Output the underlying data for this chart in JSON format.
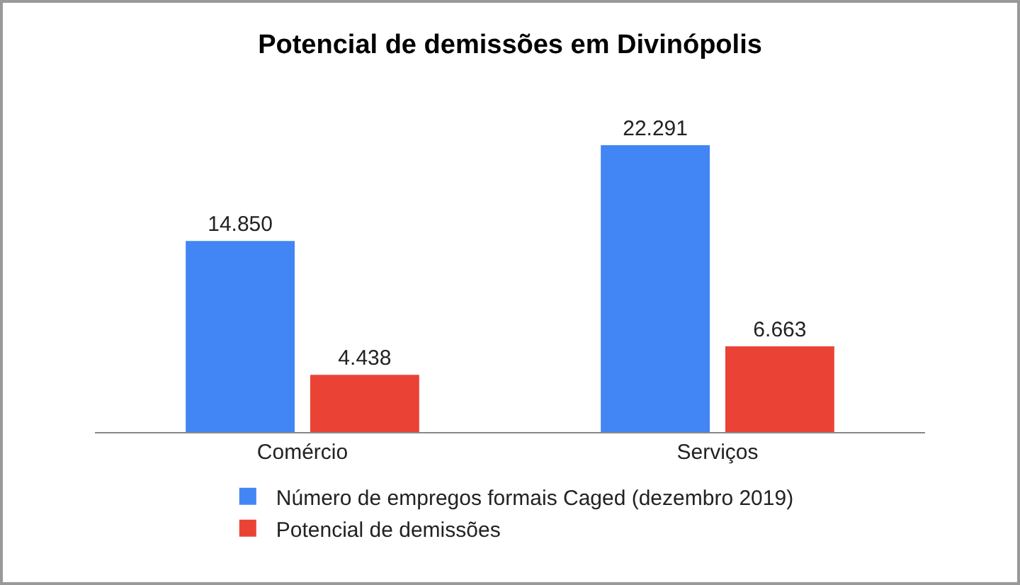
{
  "chart_data": {
    "type": "bar",
    "title": "Potencial de demissões em Divinópolis",
    "categories": [
      "Comércio",
      "Serviços"
    ],
    "series": [
      {
        "name": "Número de empregos formais Caged (dezembro 2019)",
        "color": "#4285f4",
        "values": [
          14850,
          22291
        ],
        "value_labels": [
          "14.850",
          "22.291"
        ]
      },
      {
        "name": "Potencial de demissões",
        "color": "#ea4335",
        "values": [
          4438,
          6663
        ],
        "value_labels": [
          "4.438",
          "6.663"
        ]
      }
    ],
    "legend": "bottom",
    "grid": false
  }
}
